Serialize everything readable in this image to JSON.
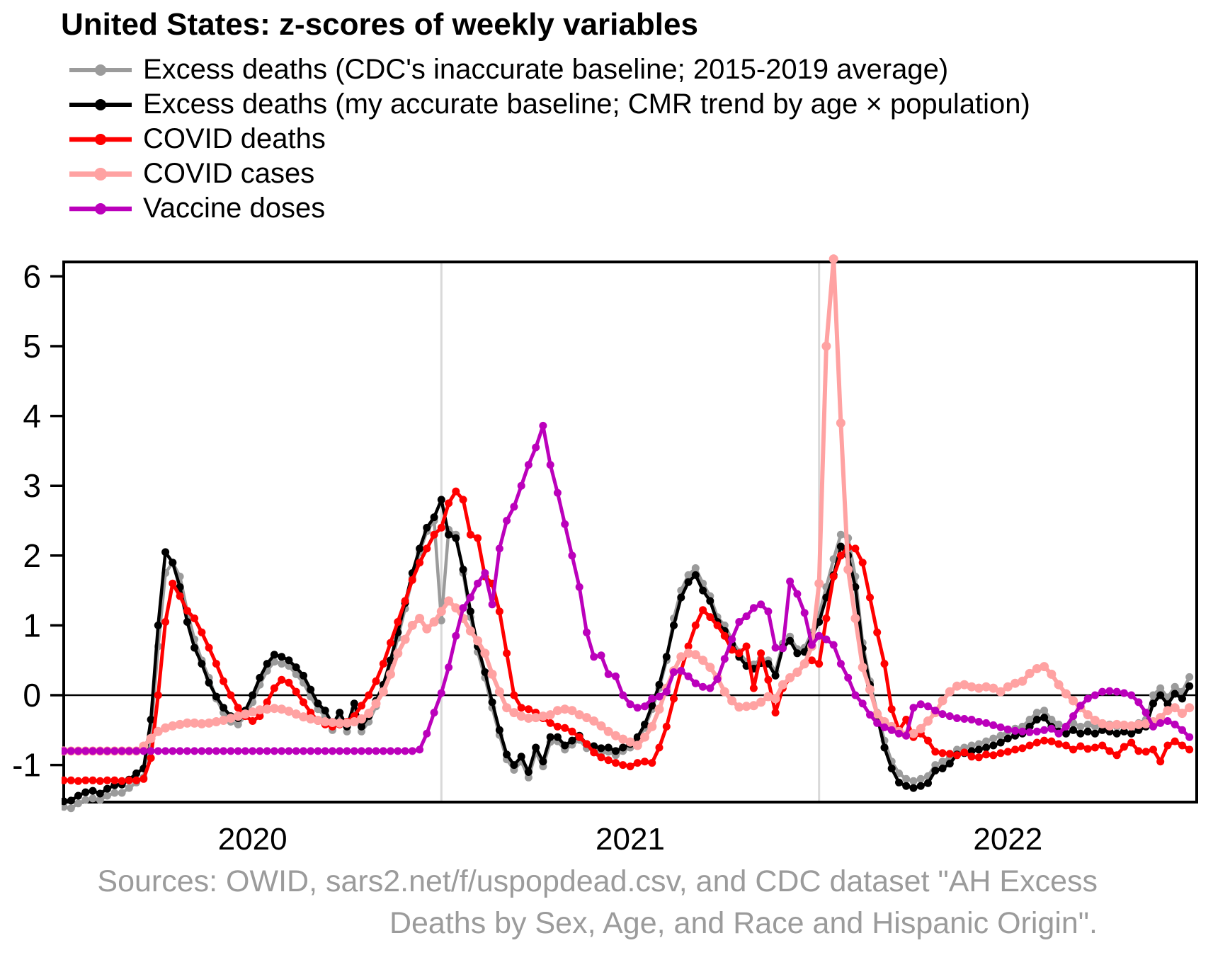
{
  "title": "United States: z-scores of weekly variables",
  "legend": {
    "items": [
      {
        "name": "excess-deaths-cdc-baseline",
        "label": "Excess deaths (CDC's inaccurate baseline; 2015-2019 average)",
        "color": "#9b9b9b"
      },
      {
        "name": "excess-deaths-accurate-baseline",
        "label": "Excess deaths (my accurate baseline; CMR trend by age × population)",
        "color": "#000000"
      },
      {
        "name": "covid-deaths",
        "label": "COVID deaths",
        "color": "#ff0000"
      },
      {
        "name": "covid-cases",
        "label": "COVID cases",
        "color": "#ffa2a2"
      },
      {
        "name": "vaccine-doses",
        "label": "Vaccine doses",
        "color": "#bb00bb"
      }
    ]
  },
  "sources": {
    "line1": "Sources: OWID, sars2.net/f/uspopdead.csv, and CDC dataset \"AH Excess",
    "line2": "Deaths by Sex, Age, and Race and Hispanic Origin\"."
  },
  "chart_data": {
    "type": "line",
    "x_axis": {
      "unit": "week",
      "total_weeks": 156,
      "tick_labels": [
        "2020",
        "2021",
        "2022"
      ],
      "label_center_weeks": [
        26,
        78,
        130
      ],
      "year_boundary_weeks": [
        52,
        104
      ],
      "gridline_color": "#d9d9d9"
    },
    "y_axis": {
      "ticks": [
        6,
        5,
        4,
        3,
        2,
        1,
        0,
        -1
      ],
      "min": -1.65,
      "max": 6.25,
      "zero_line": true
    },
    "legend_position": "top-left",
    "series": [
      {
        "name": "excess_deaths_cdc_baseline",
        "color": "#9b9b9b",
        "values": [
          -1.6,
          -1.62,
          -1.55,
          -1.5,
          -1.48,
          -1.5,
          -1.44,
          -1.4,
          -1.4,
          -1.33,
          -1.25,
          -1.18,
          -0.55,
          0.7,
          1.75,
          1.9,
          1.7,
          1.2,
          0.8,
          0.5,
          0.25,
          -0.05,
          -0.25,
          -0.38,
          -0.42,
          -0.3,
          -0.1,
          0.15,
          0.35,
          0.48,
          0.45,
          0.42,
          0.3,
          0.18,
          -0.02,
          -0.2,
          -0.3,
          -0.5,
          -0.33,
          -0.52,
          -0.2,
          -0.52,
          -0.38,
          -0.16,
          0.08,
          0.42,
          0.82,
          1.24,
          1.68,
          2.05,
          2.35,
          2.5,
          1.07,
          2.37,
          2.3,
          1.75,
          1.12,
          0.62,
          0.25,
          -0.18,
          -0.57,
          -0.92,
          -1.07,
          -0.95,
          -1.18,
          -0.82,
          -1.02,
          -0.67,
          -0.66,
          -0.78,
          -0.71,
          -0.64,
          -0.76,
          -0.79,
          -0.82,
          -0.81,
          -0.86,
          -0.8,
          -0.75,
          -0.65,
          -0.47,
          -0.2,
          0.1,
          0.5,
          1.1,
          1.5,
          1.72,
          1.82,
          1.6,
          1.42,
          1.12,
          1.0,
          0.8,
          0.62,
          0.48,
          0.44,
          0.52,
          0.5,
          0.34,
          0.74,
          0.84,
          0.66,
          0.68,
          0.9,
          1.15,
          1.55,
          1.95,
          2.3,
          2.25,
          1.7,
          0.75,
          0.2,
          -0.25,
          -0.65,
          -0.95,
          -1.12,
          -1.2,
          -1.23,
          -1.2,
          -1.16,
          -1.0,
          -0.95,
          -0.9,
          -0.78,
          -0.75,
          -0.72,
          -0.7,
          -0.66,
          -0.62,
          -0.58,
          -0.52,
          -0.48,
          -0.45,
          -0.35,
          -0.25,
          -0.22,
          -0.35,
          -0.42,
          -0.45,
          -0.4,
          -0.45,
          -0.42,
          -0.45,
          -0.4,
          -0.42,
          -0.45,
          -0.42,
          -0.45,
          -0.4,
          -0.35,
          0.0,
          0.1,
          -0.03,
          0.12,
          0.05,
          0.26
        ]
      },
      {
        "name": "excess_deaths_accurate_baseline",
        "color": "#000000",
        "values": [
          -1.52,
          -1.51,
          -1.44,
          -1.39,
          -1.37,
          -1.41,
          -1.34,
          -1.29,
          -1.28,
          -1.21,
          -1.12,
          -1.05,
          -0.35,
          1.0,
          2.05,
          1.9,
          1.55,
          1.05,
          0.68,
          0.45,
          0.18,
          -0.02,
          -0.18,
          -0.3,
          -0.33,
          -0.22,
          0.0,
          0.25,
          0.45,
          0.58,
          0.55,
          0.5,
          0.4,
          0.28,
          0.08,
          -0.12,
          -0.22,
          -0.42,
          -0.25,
          -0.45,
          -0.12,
          -0.45,
          -0.3,
          -0.08,
          0.15,
          0.5,
          0.9,
          1.32,
          1.75,
          2.1,
          2.4,
          2.55,
          2.8,
          2.3,
          2.25,
          1.8,
          1.2,
          0.7,
          0.33,
          -0.1,
          -0.5,
          -0.85,
          -1.0,
          -0.88,
          -1.1,
          -0.75,
          -0.95,
          -0.6,
          -0.6,
          -0.72,
          -0.65,
          -0.58,
          -0.7,
          -0.73,
          -0.76,
          -0.75,
          -0.8,
          -0.75,
          -0.7,
          -0.6,
          -0.42,
          -0.15,
          0.15,
          0.55,
          1.0,
          1.4,
          1.62,
          1.72,
          1.5,
          1.35,
          1.05,
          0.92,
          0.73,
          0.55,
          0.42,
          0.38,
          0.46,
          0.45,
          0.28,
          0.68,
          0.78,
          0.6,
          0.62,
          0.85,
          1.05,
          1.4,
          1.72,
          2.13,
          2.0,
          1.55,
          0.67,
          0.15,
          -0.3,
          -0.75,
          -1.05,
          -1.25,
          -1.3,
          -1.33,
          -1.3,
          -1.26,
          -1.08,
          -1.05,
          -0.98,
          -0.85,
          -0.83,
          -0.8,
          -0.78,
          -0.75,
          -0.72,
          -0.68,
          -0.62,
          -0.58,
          -0.55,
          -0.45,
          -0.35,
          -0.32,
          -0.45,
          -0.52,
          -0.55,
          -0.5,
          -0.55,
          -0.52,
          -0.55,
          -0.5,
          -0.52,
          -0.55,
          -0.52,
          -0.55,
          -0.5,
          -0.45,
          -0.12,
          0.0,
          -0.13,
          0.02,
          -0.05,
          0.13
        ]
      },
      {
        "name": "covid_deaths",
        "color": "#ff0000",
        "values": [
          -1.22,
          -1.22,
          -1.23,
          -1.22,
          -1.22,
          -1.23,
          -1.22,
          -1.22,
          -1.23,
          -1.22,
          -1.22,
          -1.2,
          -0.9,
          0.0,
          1.05,
          1.6,
          1.42,
          1.21,
          1.1,
          0.9,
          0.68,
          0.45,
          0.2,
          0.0,
          -0.18,
          -0.3,
          -0.37,
          -0.3,
          -0.1,
          0.1,
          0.22,
          0.18,
          0.05,
          -0.1,
          -0.25,
          -0.37,
          -0.42,
          -0.45,
          -0.42,
          -0.38,
          -0.3,
          -0.15,
          0.0,
          0.2,
          0.45,
          0.75,
          1.05,
          1.35,
          1.65,
          1.9,
          2.1,
          2.3,
          2.4,
          2.75,
          2.92,
          2.8,
          2.3,
          2.25,
          1.7,
          1.6,
          1.2,
          0.6,
          0.0,
          -0.18,
          -0.2,
          -0.25,
          -0.33,
          -0.4,
          -0.45,
          -0.47,
          -0.52,
          -0.6,
          -0.7,
          -0.82,
          -0.89,
          -0.93,
          -0.97,
          -1.0,
          -1.02,
          -0.97,
          -0.95,
          -0.97,
          -0.75,
          -0.45,
          -0.05,
          0.35,
          0.7,
          1.0,
          1.22,
          1.12,
          1.0,
          0.85,
          0.65,
          0.6,
          0.7,
          0.1,
          0.6,
          0.22,
          -0.25,
          0.1,
          0.25,
          0.32,
          0.44,
          0.5,
          0.45,
          1.1,
          1.7,
          2.0,
          2.12,
          2.1,
          1.9,
          1.4,
          0.9,
          0.45,
          -0.2,
          -0.5,
          -0.35,
          -0.6,
          -0.55,
          -0.65,
          -0.81,
          -0.83,
          -0.84,
          -0.86,
          -0.82,
          -0.88,
          -0.89,
          -0.85,
          -0.86,
          -0.83,
          -0.81,
          -0.78,
          -0.76,
          -0.72,
          -0.68,
          -0.65,
          -0.66,
          -0.7,
          -0.72,
          -0.78,
          -0.73,
          -0.77,
          -0.75,
          -0.72,
          -0.8,
          -0.86,
          -0.74,
          -0.68,
          -0.8,
          -0.81,
          -0.78,
          -0.95,
          -0.72,
          -0.66,
          -0.72,
          -0.78
        ]
      },
      {
        "name": "covid_cases",
        "color": "#ffa2a2",
        "values": [
          -0.8,
          -0.8,
          -0.8,
          -0.8,
          -0.8,
          -0.8,
          -0.8,
          -0.8,
          -0.8,
          -0.8,
          -0.8,
          -0.73,
          -0.62,
          -0.52,
          -0.47,
          -0.44,
          -0.42,
          -0.4,
          -0.4,
          -0.41,
          -0.4,
          -0.38,
          -0.36,
          -0.33,
          -0.3,
          -0.27,
          -0.24,
          -0.21,
          -0.2,
          -0.19,
          -0.2,
          -0.23,
          -0.27,
          -0.31,
          -0.34,
          -0.36,
          -0.38,
          -0.39,
          -0.4,
          -0.4,
          -0.38,
          -0.34,
          -0.26,
          -0.12,
          0.05,
          0.3,
          0.6,
          0.8,
          1.0,
          1.1,
          0.95,
          1.05,
          1.2,
          1.35,
          1.25,
          1.1,
          0.92,
          0.78,
          0.6,
          0.3,
          0.05,
          -0.18,
          -0.25,
          -0.3,
          -0.33,
          -0.32,
          -0.3,
          -0.28,
          -0.22,
          -0.2,
          -0.22,
          -0.28,
          -0.32,
          -0.37,
          -0.44,
          -0.52,
          -0.58,
          -0.63,
          -0.67,
          -0.72,
          -0.6,
          -0.45,
          -0.2,
          0.1,
          0.35,
          0.55,
          0.6,
          0.58,
          0.5,
          0.4,
          0.25,
          0.05,
          -0.08,
          -0.17,
          -0.16,
          -0.15,
          -0.1,
          -0.02,
          -0.05,
          0.15,
          0.25,
          0.33,
          0.45,
          0.7,
          1.6,
          5.0,
          6.25,
          3.9,
          1.8,
          1.1,
          0.4,
          0.08,
          -0.27,
          -0.38,
          -0.45,
          -0.52,
          -0.57,
          -0.55,
          -0.48,
          -0.37,
          -0.25,
          -0.08,
          0.05,
          0.13,
          0.15,
          0.12,
          0.1,
          0.12,
          0.1,
          0.05,
          0.12,
          0.17,
          0.2,
          0.31,
          0.38,
          0.41,
          0.3,
          0.15,
          0.02,
          -0.08,
          -0.18,
          -0.28,
          -0.36,
          -0.41,
          -0.44,
          -0.42,
          -0.43,
          -0.44,
          -0.42,
          -0.41,
          -0.38,
          -0.32,
          -0.22,
          -0.18,
          -0.26,
          -0.18
        ]
      },
      {
        "name": "vaccine_doses",
        "color": "#bb00bb",
        "values": [
          -0.8,
          -0.8,
          -0.8,
          -0.8,
          -0.8,
          -0.8,
          -0.8,
          -0.8,
          -0.8,
          -0.8,
          -0.8,
          -0.8,
          -0.8,
          -0.8,
          -0.8,
          -0.8,
          -0.8,
          -0.8,
          -0.8,
          -0.8,
          -0.8,
          -0.8,
          -0.8,
          -0.8,
          -0.8,
          -0.8,
          -0.8,
          -0.8,
          -0.8,
          -0.8,
          -0.8,
          -0.8,
          -0.8,
          -0.8,
          -0.8,
          -0.8,
          -0.8,
          -0.8,
          -0.8,
          -0.8,
          -0.8,
          -0.8,
          -0.8,
          -0.8,
          -0.8,
          -0.8,
          -0.8,
          -0.8,
          -0.8,
          -0.78,
          -0.55,
          -0.25,
          0.03,
          0.4,
          0.85,
          1.25,
          1.4,
          1.6,
          1.75,
          1.3,
          2.1,
          2.5,
          2.7,
          3.0,
          3.3,
          3.55,
          3.86,
          3.3,
          2.9,
          2.45,
          2.0,
          1.55,
          0.9,
          0.55,
          0.57,
          0.3,
          0.27,
          0.0,
          -0.13,
          -0.18,
          -0.16,
          -0.05,
          -0.02,
          0.05,
          0.33,
          0.35,
          0.27,
          0.17,
          0.12,
          0.1,
          0.23,
          0.52,
          0.8,
          1.05,
          1.13,
          1.25,
          1.3,
          1.2,
          0.68,
          0.67,
          1.63,
          1.45,
          1.18,
          0.72,
          0.85,
          0.8,
          0.72,
          0.45,
          0.25,
          0.0,
          -0.12,
          -0.28,
          -0.4,
          -0.46,
          -0.5,
          -0.55,
          -0.58,
          -0.18,
          -0.13,
          -0.16,
          -0.22,
          -0.27,
          -0.3,
          -0.33,
          -0.34,
          -0.35,
          -0.38,
          -0.4,
          -0.43,
          -0.46,
          -0.49,
          -0.51,
          -0.52,
          -0.53,
          -0.52,
          -0.5,
          -0.48,
          -0.55,
          -0.45,
          -0.3,
          -0.15,
          -0.05,
          0.0,
          0.05,
          0.06,
          0.05,
          0.03,
          0.0,
          -0.1,
          -0.25,
          -0.45,
          -0.4,
          -0.37,
          -0.42,
          -0.5,
          -0.6
        ]
      }
    ]
  }
}
